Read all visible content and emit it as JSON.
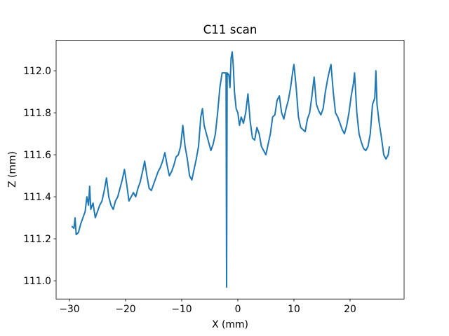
{
  "chart_data": {
    "type": "line",
    "title": "C11 scan",
    "x_label": "X (mm)",
    "y_label": "Z (mm)",
    "color": "#1f77b4",
    "xlim": [
      -32.375,
      29.625
    ],
    "ylim": [
      110.913,
      112.145
    ],
    "xticks": [
      {
        "value": -30,
        "label": "−30"
      },
      {
        "value": -20,
        "label": "−20"
      },
      {
        "value": -10,
        "label": "−10"
      },
      0,
      10,
      20
    ],
    "yticks": [
      {
        "value": 111.0,
        "label": "111.0"
      },
      111.2,
      111.4,
      111.6,
      111.8,
      {
        "value": 112.0,
        "label": "112.0"
      }
    ],
    "grid": false,
    "x": [
      -29.6,
      -29.2,
      -29.0,
      -28.8,
      -28.4,
      -28.0,
      -27.6,
      -27.2,
      -26.9,
      -26.6,
      -26.4,
      -26.2,
      -25.8,
      -25.4,
      -25.0,
      -24.6,
      -24.2,
      -23.8,
      -23.4,
      -23.0,
      -22.6,
      -22.2,
      -21.8,
      -21.4,
      -21.0,
      -20.6,
      -20.2,
      -19.8,
      -19.4,
      -19.0,
      -18.6,
      -18.2,
      -17.8,
      -17.4,
      -16.9,
      -16.6,
      -16.2,
      -15.8,
      -15.4,
      -15.0,
      -14.6,
      -14.2,
      -13.8,
      -13.4,
      -13.0,
      -12.6,
      -12.2,
      -11.8,
      -11.4,
      -11.0,
      -10.6,
      -10.2,
      -9.8,
      -9.4,
      -9.0,
      -8.6,
      -8.2,
      -7.8,
      -7.4,
      -7.0,
      -6.6,
      -6.3,
      -6.0,
      -5.6,
      -5.2,
      -4.8,
      -4.4,
      -4.0,
      -3.6,
      -3.2,
      -2.8,
      -2.4,
      -2.1,
      -2.0,
      -1.9,
      -1.6,
      -1.4,
      -1.2,
      -1.0,
      -0.8,
      -0.6,
      -0.3,
      0.0,
      0.3,
      0.6,
      1.0,
      1.4,
      1.8,
      2.2,
      2.6,
      3.0,
      3.4,
      3.8,
      4.2,
      4.6,
      5.0,
      5.4,
      5.8,
      6.2,
      6.6,
      7.0,
      7.4,
      7.8,
      8.2,
      8.6,
      9.0,
      9.4,
      9.8,
      10.0,
      10.4,
      10.8,
      11.2,
      11.6,
      12.0,
      12.4,
      12.8,
      13.2,
      13.6,
      14.0,
      14.4,
      14.8,
      15.2,
      15.6,
      16.0,
      16.4,
      16.6,
      17.0,
      17.4,
      17.8,
      18.2,
      18.6,
      19.0,
      19.4,
      19.8,
      20.2,
      20.6,
      20.8,
      21.2,
      21.6,
      22.0,
      22.4,
      22.8,
      23.2,
      23.6,
      24.0,
      24.4,
      24.6,
      24.8,
      25.2,
      25.6,
      26.0,
      26.4,
      26.8,
      27.0
    ],
    "values": [
      111.26,
      111.25,
      111.3,
      111.22,
      111.23,
      111.27,
      111.3,
      111.33,
      111.4,
      111.36,
      111.45,
      111.34,
      111.37,
      111.3,
      111.33,
      111.36,
      111.38,
      111.43,
      111.49,
      111.4,
      111.36,
      111.34,
      111.38,
      111.4,
      111.44,
      111.48,
      111.53,
      111.46,
      111.38,
      111.4,
      111.42,
      111.4,
      111.44,
      111.47,
      111.53,
      111.57,
      111.5,
      111.44,
      111.43,
      111.46,
      111.49,
      111.52,
      111.54,
      111.57,
      111.61,
      111.55,
      111.5,
      111.52,
      111.55,
      111.59,
      111.6,
      111.64,
      111.74,
      111.64,
      111.58,
      111.5,
      111.48,
      111.53,
      111.58,
      111.64,
      111.78,
      111.82,
      111.74,
      111.7,
      111.66,
      111.62,
      111.65,
      111.7,
      111.8,
      111.92,
      111.99,
      111.99,
      111.99,
      110.97,
      111.99,
      111.98,
      111.92,
      112.06,
      112.09,
      112.02,
      111.9,
      111.82,
      111.8,
      111.74,
      111.78,
      111.75,
      111.8,
      111.89,
      111.76,
      111.68,
      111.67,
      111.73,
      111.7,
      111.64,
      111.62,
      111.6,
      111.65,
      111.7,
      111.78,
      111.79,
      111.86,
      111.88,
      111.8,
      111.77,
      111.82,
      111.86,
      111.92,
      112.0,
      112.03,
      111.92,
      111.78,
      111.73,
      111.72,
      111.71,
      111.77,
      111.8,
      111.88,
      111.97,
      111.84,
      111.81,
      111.79,
      111.82,
      111.9,
      111.96,
      112.01,
      112.03,
      111.9,
      111.8,
      111.78,
      111.75,
      111.72,
      111.7,
      111.74,
      111.8,
      111.88,
      111.94,
      111.99,
      111.8,
      111.7,
      111.66,
      111.63,
      111.62,
      111.64,
      111.7,
      111.84,
      111.87,
      112.0,
      111.84,
      111.75,
      111.68,
      111.6,
      111.58,
      111.6,
      111.64
    ]
  }
}
